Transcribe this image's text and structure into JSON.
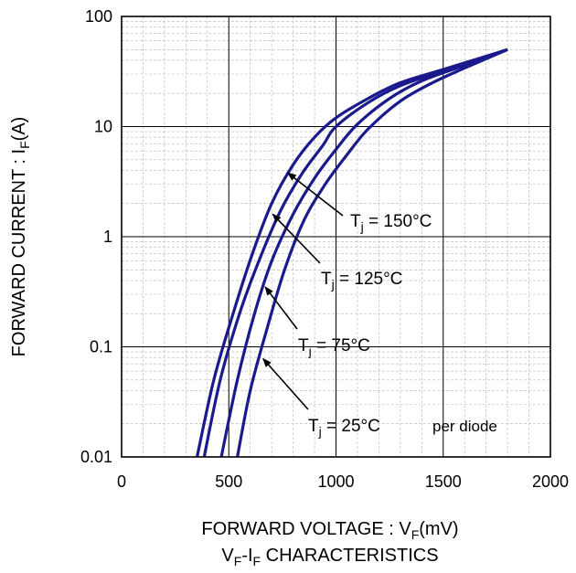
{
  "chart_data": {
    "type": "line",
    "title": "VF-IF CHARACTERISTICS",
    "title_parts": {
      "main": "V",
      "sub1": "F",
      "mid": "-I",
      "sub2": "F",
      "rest": " CHARACTERISTICS"
    },
    "xlabel": "FORWARD VOLTAGE : VF(mV)",
    "xlabel_parts": {
      "pre": "FORWARD VOLTAGE : V",
      "sub": "F",
      "post": "(mV)"
    },
    "ylabel": "FORWARD CURRENT : IF(A)",
    "ylabel_parts": {
      "pre": "FORWARD CURRENT : I",
      "sub": "F",
      "post": "(A)"
    },
    "xlim": [
      0,
      2000
    ],
    "ylim": [
      0.01,
      100
    ],
    "yscale": "log",
    "grid": true,
    "x_ticks": [
      0,
      500,
      1000,
      1500,
      2000
    ],
    "x_tick_labels": [
      "0",
      "500",
      "1000",
      "1500",
      "2000"
    ],
    "y_ticks": [
      0.01,
      0.1,
      1,
      10,
      100
    ],
    "y_tick_labels": [
      "0.01",
      "0.1",
      "1",
      "10",
      "100"
    ],
    "line_color": "#1a1a8c",
    "note": "per diode",
    "series": [
      {
        "name": "Tj = 150°C",
        "label_text": "= 150°C",
        "points": [
          [
            352,
            0.01
          ],
          [
            430,
            0.05
          ],
          [
            520,
            0.2
          ],
          [
            610,
            0.7
          ],
          [
            700,
            2.0
          ],
          [
            800,
            4.5
          ],
          [
            900,
            8.0
          ],
          [
            1000,
            12.0
          ],
          [
            1150,
            18.0
          ],
          [
            1300,
            25.0
          ],
          [
            1500,
            33.0
          ],
          [
            1800,
            50.0
          ]
        ],
        "arrow_tip": [
          775,
          3.8
        ]
      },
      {
        "name": "Tj = 125°C",
        "label_text": "= 125°C",
        "points": [
          [
            385,
            0.01
          ],
          [
            460,
            0.05
          ],
          [
            550,
            0.2
          ],
          [
            640,
            0.6
          ],
          [
            740,
            1.7
          ],
          [
            840,
            3.7
          ],
          [
            940,
            6.8
          ],
          [
            1000,
            10.0
          ],
          [
            1150,
            16.5
          ],
          [
            1300,
            23.5
          ],
          [
            1500,
            32.0
          ],
          [
            1800,
            50.0
          ]
        ],
        "arrow_tip": [
          705,
          1.6
        ]
      },
      {
        "name": "Tj = 75°C",
        "label_text": "= 75°C",
        "points": [
          [
            465,
            0.01
          ],
          [
            540,
            0.05
          ],
          [
            620,
            0.2
          ],
          [
            700,
            0.6
          ],
          [
            800,
            1.6
          ],
          [
            900,
            3.4
          ],
          [
            1000,
            6.2
          ],
          [
            1100,
            10.5
          ],
          [
            1250,
            18.0
          ],
          [
            1400,
            26.0
          ],
          [
            1600,
            36.0
          ],
          [
            1800,
            50.0
          ]
        ],
        "arrow_tip": [
          670,
          0.35
        ]
      },
      {
        "name": "Tj = 25°C",
        "label_text": "= 25°C",
        "points": [
          [
            540,
            0.01
          ],
          [
            600,
            0.04
          ],
          [
            680,
            0.15
          ],
          [
            760,
            0.5
          ],
          [
            850,
            1.4
          ],
          [
            950,
            3.0
          ],
          [
            1050,
            5.5
          ],
          [
            1150,
            9.5
          ],
          [
            1300,
            17.0
          ],
          [
            1450,
            25.0
          ],
          [
            1600,
            34.0
          ],
          [
            1800,
            50.0
          ]
        ],
        "arrow_tip": [
          660,
          0.078
        ]
      }
    ]
  }
}
